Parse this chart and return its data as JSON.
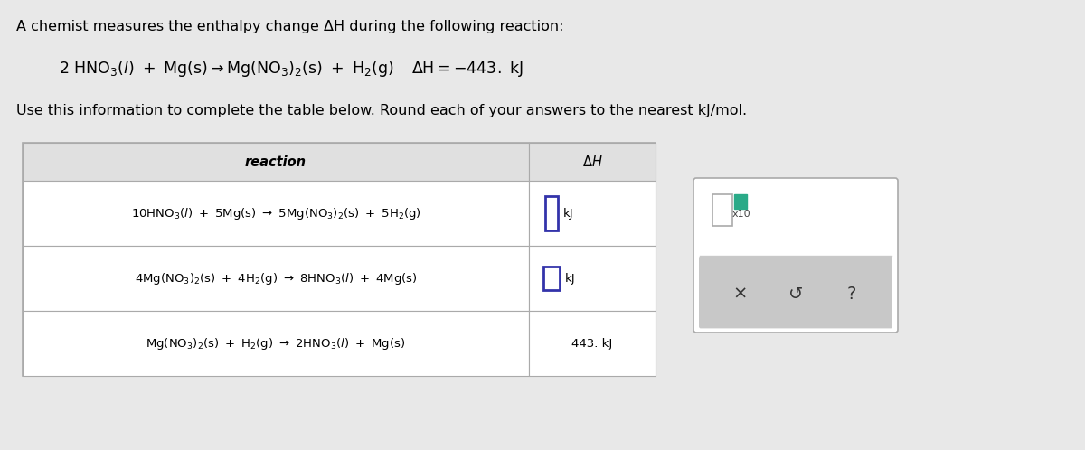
{
  "bg_color": "#c8c8c8",
  "title_line1": "A chemist measures the enthalpy change ΔH during the following reaction:",
  "instruction": "Use this information to complete the table below. Round each of your answers to the nearest kJ/mol.",
  "table_header_reaction": "reaction",
  "table_header_dH": "ΔH",
  "row1_dH": "kJ",
  "row2_dH": "kJ",
  "row3_dH": "443. kJ",
  "box_label": "x10",
  "side_symbols": [
    "×",
    "↺",
    "?"
  ],
  "input_box_color": "#3333aa",
  "teal_box_color": "#2aaa88",
  "white_box_color": "#bbbbcc",
  "font_size_title": 11.5,
  "font_size_reaction_main": 12.5,
  "font_size_table_reaction": 9.5,
  "font_size_table_header": 10.5
}
